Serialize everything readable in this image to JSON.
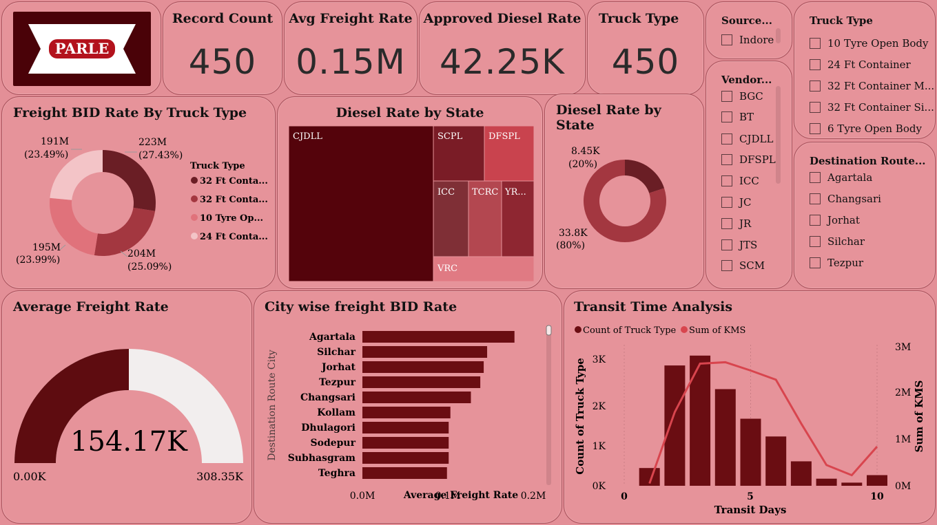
{
  "logo": {
    "text": "PARLE"
  },
  "kpis": {
    "record_count": {
      "title": "Record Count",
      "value": "450"
    },
    "avg_freight_rate": {
      "title": "Avg Freight Rate",
      "value": "0.15M"
    },
    "approved_diesel_rate": {
      "title": "Approved Diesel Rate",
      "value": "42.25K"
    },
    "truck_type": {
      "title": "Truck Type",
      "value": "450"
    }
  },
  "slicers": {
    "source": {
      "title": "Source...",
      "items": [
        "Indore"
      ]
    },
    "vendor": {
      "title": "Vendor...",
      "items": [
        "BGC",
        "BT",
        "CJDLL",
        "DFSPL",
        "ICC",
        "JC",
        "JR",
        "JTS",
        "SCM"
      ]
    },
    "truck_type": {
      "title": "Truck Type",
      "items": [
        "10 Tyre Open Body",
        "24 Ft Container",
        "32 Ft Container M...",
        "32 Ft Container Si...",
        "6 Tyre Open Body"
      ]
    },
    "destination": {
      "title": "Destination Route...",
      "items": [
        "Agartala",
        "Changsari",
        "Jorhat",
        "Silchar",
        "Tezpur"
      ]
    }
  },
  "freight_bid_donut": {
    "title": "Freight BID Rate By Truck Type",
    "legend_title": "Truck Type",
    "legend_items": [
      "32 Ft Conta...",
      "32 Ft Conta...",
      "10 Tyre Op...",
      "24 Ft Conta..."
    ],
    "labels": [
      {
        "value": "223M",
        "pct": "(27.43%)"
      },
      {
        "value": "204M",
        "pct": "(25.09%)"
      },
      {
        "value": "195M",
        "pct": "(23.99%)"
      },
      {
        "value": "191M",
        "pct": "(23.49%)"
      }
    ],
    "colors": [
      "#6a1e25",
      "#a33740",
      "#e0727b",
      "#f3c4c7"
    ]
  },
  "diesel_treemap": {
    "title": "Diesel Rate by State",
    "tiles": [
      "CJDLL",
      "SCPL",
      "DFSPL",
      "ICC",
      "TCRC",
      "YR...",
      "VRC"
    ]
  },
  "diesel_donut": {
    "title": "Diesel Rate by State",
    "labels": [
      {
        "value": "8.45K",
        "pct": "(20%)"
      },
      {
        "value": "33.8K",
        "pct": "(80%)"
      }
    ],
    "colors": [
      "#6a1e25",
      "#a33740"
    ]
  },
  "gauge": {
    "title": "Average Freight Rate",
    "value_label": "154.17K",
    "min_label": "0.00K",
    "max_label": "308.35K",
    "fill_fraction": 0.5
  },
  "city_bar": {
    "title": "City wise freight BID Rate",
    "xlabel": "Average Freight Rate",
    "ylabel": "Destination Route City",
    "x_ticks": [
      "0.0M",
      "0.1M",
      "0.2M"
    ]
  },
  "transit": {
    "title": "Transit Time Analysis",
    "legend": [
      "Count of Truck Type",
      "Sum of KMS"
    ],
    "xlabel": "Transit Days",
    "ylabel_left": "Count of Truck Type",
    "ylabel_right": "Sum of KMS",
    "x_ticks": [
      "0",
      "5",
      "10"
    ],
    "y_left_ticks": [
      "0K",
      "1K",
      "2K",
      "3K"
    ],
    "y_right_ticks": [
      "0M",
      "1M",
      "2M",
      "3M"
    ]
  },
  "chart_data": [
    {
      "type": "pie",
      "title": "Freight BID Rate By Truck Type",
      "categories": [
        "32 Ft Conta...",
        "32 Ft Conta...",
        "10 Tyre Op...",
        "24 Ft Conta..."
      ],
      "values": [
        223,
        204,
        195,
        191
      ],
      "unit": "M",
      "percentages": [
        27.43,
        25.09,
        23.99,
        23.49
      ]
    },
    {
      "type": "heatmap",
      "title": "Diesel Rate by State",
      "categories": [
        "CJDLL",
        "SCPL",
        "DFSPL",
        "ICC",
        "TCRC",
        "YR...",
        "VRC"
      ]
    },
    {
      "type": "pie",
      "title": "Diesel Rate by State",
      "values": [
        8.45,
        33.8
      ],
      "unit": "K",
      "percentages": [
        20,
        80
      ]
    },
    {
      "type": "bar",
      "title": "City wise freight BID Rate",
      "categories": [
        "Agartala",
        "Silchar",
        "Jorhat",
        "Tezpur",
        "Changsari",
        "Kollam",
        "Dhulagori",
        "Sodepur",
        "Subhasgram",
        "Teghra"
      ],
      "values": [
        0.178,
        0.146,
        0.142,
        0.138,
        0.127,
        0.103,
        0.101,
        0.101,
        0.101,
        0.099
      ],
      "xlabel": "Average Freight Rate",
      "ylabel": "Destination Route City",
      "xlim": [
        0,
        0.2
      ],
      "orientation": "horizontal"
    },
    {
      "type": "bar",
      "title": "Transit Time Analysis",
      "x": [
        1,
        2,
        3,
        4,
        5,
        6,
        7,
        8,
        9,
        10
      ],
      "series": [
        {
          "name": "Count of Truck Type",
          "type": "bar",
          "values": [
            0.45,
            3.05,
            3.3,
            2.45,
            1.7,
            1.25,
            0.62,
            0.18,
            0.08,
            0.27
          ],
          "axis": "left"
        },
        {
          "name": "Sum of KMS",
          "type": "line",
          "values": [
            0.05,
            1.6,
            2.65,
            2.68,
            2.5,
            2.3,
            1.35,
            0.45,
            0.23,
            0.85
          ],
          "axis": "right"
        }
      ],
      "xlabel": "Transit Days",
      "ylabel": "Count of Truck Type",
      "y2label": "Sum of KMS",
      "xlim": [
        0,
        10.5
      ],
      "ylim": [
        0,
        3.5
      ],
      "y2lim": [
        0,
        3
      ]
    }
  ]
}
